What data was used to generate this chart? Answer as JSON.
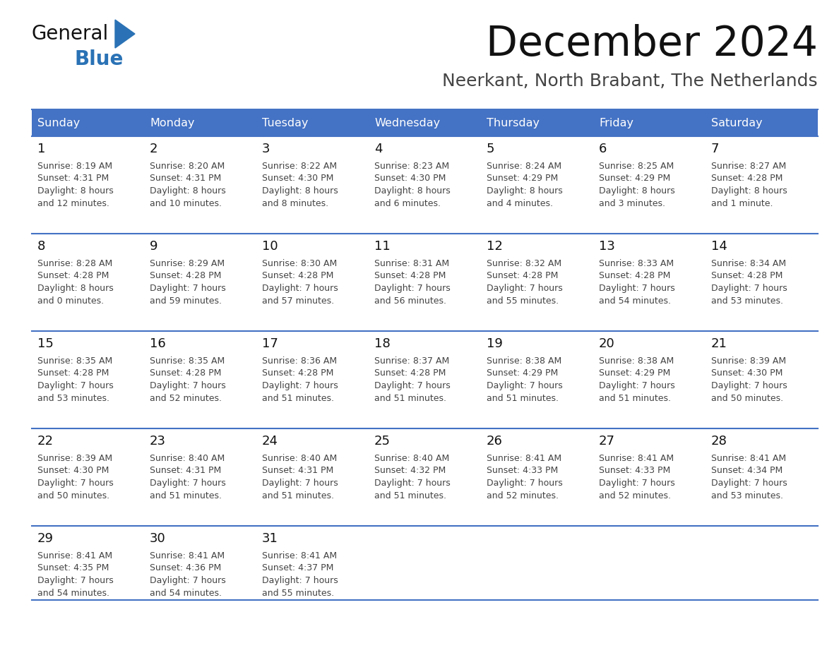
{
  "title": "December 2024",
  "subtitle": "Neerkant, North Brabant, The Netherlands",
  "days_of_week": [
    "Sunday",
    "Monday",
    "Tuesday",
    "Wednesday",
    "Thursday",
    "Friday",
    "Saturday"
  ],
  "header_bg_color": "#4472C4",
  "header_text_color": "#FFFFFF",
  "grid_line_color": "#4472C4",
  "cell_text_color": "#333333",
  "title_color": "#111111",
  "subtitle_color": "#444444",
  "general_black_color": "#1a1a1a",
  "general_blue_color": "#2a72b5",
  "triangle_color": "#2a72b5",
  "calendar_data": [
    [
      {
        "day": 1,
        "sunrise": "8:19 AM",
        "sunset": "4:31 PM",
        "daylight": "8 hours and 12 minutes."
      },
      {
        "day": 2,
        "sunrise": "8:20 AM",
        "sunset": "4:31 PM",
        "daylight": "8 hours and 10 minutes."
      },
      {
        "day": 3,
        "sunrise": "8:22 AM",
        "sunset": "4:30 PM",
        "daylight": "8 hours and 8 minutes."
      },
      {
        "day": 4,
        "sunrise": "8:23 AM",
        "sunset": "4:30 PM",
        "daylight": "8 hours and 6 minutes."
      },
      {
        "day": 5,
        "sunrise": "8:24 AM",
        "sunset": "4:29 PM",
        "daylight": "8 hours and 4 minutes."
      },
      {
        "day": 6,
        "sunrise": "8:25 AM",
        "sunset": "4:29 PM",
        "daylight": "8 hours and 3 minutes."
      },
      {
        "day": 7,
        "sunrise": "8:27 AM",
        "sunset": "4:28 PM",
        "daylight": "8 hours and 1 minute."
      }
    ],
    [
      {
        "day": 8,
        "sunrise": "8:28 AM",
        "sunset": "4:28 PM",
        "daylight": "8 hours and 0 minutes."
      },
      {
        "day": 9,
        "sunrise": "8:29 AM",
        "sunset": "4:28 PM",
        "daylight": "7 hours and 59 minutes."
      },
      {
        "day": 10,
        "sunrise": "8:30 AM",
        "sunset": "4:28 PM",
        "daylight": "7 hours and 57 minutes."
      },
      {
        "day": 11,
        "sunrise": "8:31 AM",
        "sunset": "4:28 PM",
        "daylight": "7 hours and 56 minutes."
      },
      {
        "day": 12,
        "sunrise": "8:32 AM",
        "sunset": "4:28 PM",
        "daylight": "7 hours and 55 minutes."
      },
      {
        "day": 13,
        "sunrise": "8:33 AM",
        "sunset": "4:28 PM",
        "daylight": "7 hours and 54 minutes."
      },
      {
        "day": 14,
        "sunrise": "8:34 AM",
        "sunset": "4:28 PM",
        "daylight": "7 hours and 53 minutes."
      }
    ],
    [
      {
        "day": 15,
        "sunrise": "8:35 AM",
        "sunset": "4:28 PM",
        "daylight": "7 hours and 53 minutes."
      },
      {
        "day": 16,
        "sunrise": "8:35 AM",
        "sunset": "4:28 PM",
        "daylight": "7 hours and 52 minutes."
      },
      {
        "day": 17,
        "sunrise": "8:36 AM",
        "sunset": "4:28 PM",
        "daylight": "7 hours and 51 minutes."
      },
      {
        "day": 18,
        "sunrise": "8:37 AM",
        "sunset": "4:28 PM",
        "daylight": "7 hours and 51 minutes."
      },
      {
        "day": 19,
        "sunrise": "8:38 AM",
        "sunset": "4:29 PM",
        "daylight": "7 hours and 51 minutes."
      },
      {
        "day": 20,
        "sunrise": "8:38 AM",
        "sunset": "4:29 PM",
        "daylight": "7 hours and 51 minutes."
      },
      {
        "day": 21,
        "sunrise": "8:39 AM",
        "sunset": "4:30 PM",
        "daylight": "7 hours and 50 minutes."
      }
    ],
    [
      {
        "day": 22,
        "sunrise": "8:39 AM",
        "sunset": "4:30 PM",
        "daylight": "7 hours and 50 minutes."
      },
      {
        "day": 23,
        "sunrise": "8:40 AM",
        "sunset": "4:31 PM",
        "daylight": "7 hours and 51 minutes."
      },
      {
        "day": 24,
        "sunrise": "8:40 AM",
        "sunset": "4:31 PM",
        "daylight": "7 hours and 51 minutes."
      },
      {
        "day": 25,
        "sunrise": "8:40 AM",
        "sunset": "4:32 PM",
        "daylight": "7 hours and 51 minutes."
      },
      {
        "day": 26,
        "sunrise": "8:41 AM",
        "sunset": "4:33 PM",
        "daylight": "7 hours and 52 minutes."
      },
      {
        "day": 27,
        "sunrise": "8:41 AM",
        "sunset": "4:33 PM",
        "daylight": "7 hours and 52 minutes."
      },
      {
        "day": 28,
        "sunrise": "8:41 AM",
        "sunset": "4:34 PM",
        "daylight": "7 hours and 53 minutes."
      }
    ],
    [
      {
        "day": 29,
        "sunrise": "8:41 AM",
        "sunset": "4:35 PM",
        "daylight": "7 hours and 54 minutes."
      },
      {
        "day": 30,
        "sunrise": "8:41 AM",
        "sunset": "4:36 PM",
        "daylight": "7 hours and 54 minutes."
      },
      {
        "day": 31,
        "sunrise": "8:41 AM",
        "sunset": "4:37 PM",
        "daylight": "7 hours and 55 minutes."
      },
      null,
      null,
      null,
      null
    ]
  ]
}
